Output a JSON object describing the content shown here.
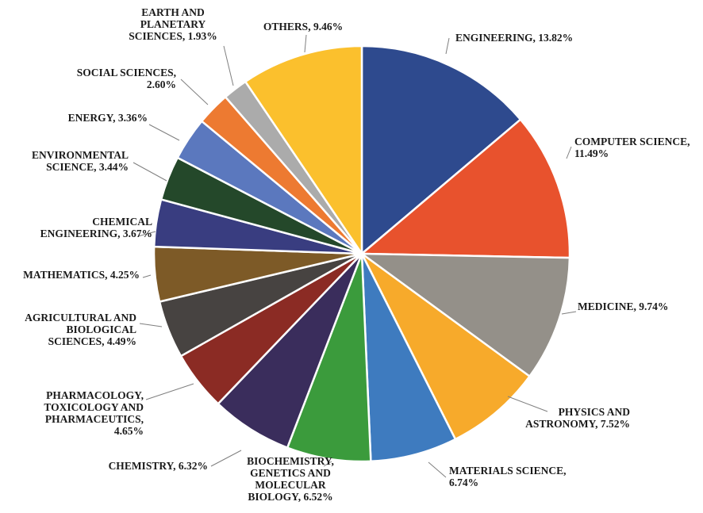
{
  "chart_data": {
    "type": "pie",
    "title": "",
    "start_angle_deg": 0,
    "direction": "clockwise",
    "slices": [
      {
        "lines": [
          "ENGINEERING, 13.82%"
        ],
        "value": 13.82,
        "color": "#2E4A8E"
      },
      {
        "lines": [
          "COMPUTER SCIENCE,",
          "11.49%"
        ],
        "value": 11.49,
        "color": "#E8522D"
      },
      {
        "lines": [
          "MEDICINE, 9.74%"
        ],
        "value": 9.74,
        "color": "#949089"
      },
      {
        "lines": [
          "PHYSICS AND",
          "ASTRONOMY, 7.52%"
        ],
        "value": 7.52,
        "color": "#F7AA2B"
      },
      {
        "lines": [
          "MATERIALS SCIENCE,",
          "6.74%"
        ],
        "value": 6.74,
        "color": "#3E7BBF"
      },
      {
        "lines": [
          "BIOCHEMISTRY,",
          "GENETICS AND",
          "MOLECULAR",
          "BIOLOGY, 6.52%"
        ],
        "value": 6.52,
        "color": "#3B9B3C"
      },
      {
        "lines": [
          "CHEMISTRY, 6.32%"
        ],
        "value": 6.32,
        "color": "#3A2D5C"
      },
      {
        "lines": [
          "PHARMACOLOGY,",
          "TOXICOLOGY AND",
          "PHARMACEUTICS,",
          "4.65%"
        ],
        "value": 4.65,
        "color": "#8B2B24"
      },
      {
        "lines": [
          "AGRICULTURAL AND",
          "BIOLOGICAL",
          "SCIENCES, 4.49%"
        ],
        "value": 4.49,
        "color": "#474341"
      },
      {
        "lines": [
          "MATHEMATICS, 4.25%"
        ],
        "value": 4.25,
        "color": "#7D5A27"
      },
      {
        "lines": [
          "CHEMICAL",
          "ENGINEERING, 3.67%"
        ],
        "value": 3.67,
        "color": "#393D80"
      },
      {
        "lines": [
          "ENVIRONMENTAL",
          "SCIENCE, 3.44%"
        ],
        "value": 3.44,
        "color": "#24482A"
      },
      {
        "lines": [
          "ENERGY, 3.36%"
        ],
        "value": 3.36,
        "color": "#5B78BE"
      },
      {
        "lines": [
          "SOCIAL SCIENCES,",
          "2.60%"
        ],
        "value": 2.6,
        "color": "#ED7A31"
      },
      {
        "lines": [
          "EARTH AND",
          "PLANETARY",
          "SCIENCES, 1.93%"
        ],
        "value": 1.93,
        "color": "#ABABAB"
      },
      {
        "lines": [
          "OTHERS, 9.46%"
        ],
        "value": 9.46,
        "color": "#FBC02D"
      }
    ]
  }
}
